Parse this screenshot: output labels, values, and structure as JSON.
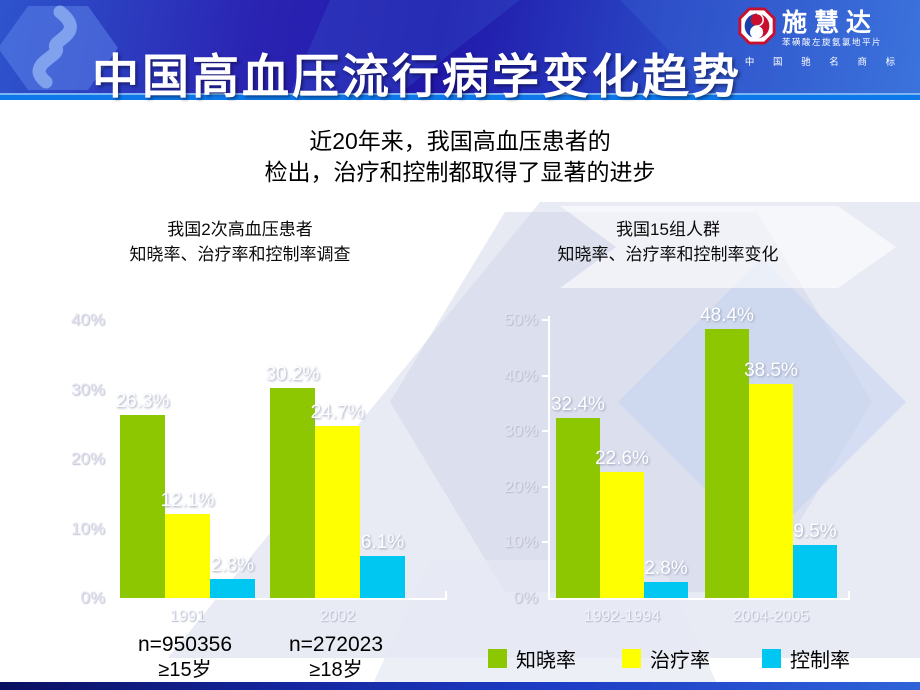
{
  "slide": {
    "title": "中国高血压流行病学变化趋势",
    "logo": {
      "brand": "施慧达",
      "subtext": "苯磺酸左旋氨氯地平片",
      "trademark": "中 国 驰 名 商 标"
    },
    "subtitle_line1": "近20年来，我国高血压患者的",
    "subtitle_line2": "检出，治疗和控制都取得了显著的进步"
  },
  "chart_data": [
    {
      "type": "bar",
      "title": "我国2次高血压患者 知晓率、治疗率和控制率调查",
      "title_line1": "我国2次高血压患者",
      "title_line2": "知晓率、治疗率和控制率调查",
      "categories": [
        "1991",
        "2002"
      ],
      "series": [
        {
          "name": "知晓率",
          "color": "#8dc702",
          "values": [
            26.3,
            30.2
          ]
        },
        {
          "name": "治疗率",
          "color": "#feff00",
          "values": [
            12.1,
            24.7
          ]
        },
        {
          "name": "控制率",
          "color": "#00c6f2",
          "values": [
            2.8,
            6.1
          ]
        }
      ],
      "value_suffix": "%",
      "ylim": [
        0,
        40
      ],
      "yticks": [
        "0%",
        "10%",
        "20%",
        "30%",
        "40%"
      ],
      "grid": false,
      "legend_position": "bottom",
      "footnotes": [
        {
          "n": "n=950356",
          "age": "≥15岁"
        },
        {
          "n": "n=272023",
          "age": "≥18岁"
        }
      ]
    },
    {
      "type": "bar",
      "title": "我国15组人群 知晓率、治疗率和控制率变化",
      "title_line1": "我国15组人群",
      "title_line2": "知晓率、治疗率和控制率变化",
      "categories": [
        "1992-1994",
        "2004-2005"
      ],
      "series": [
        {
          "name": "知晓率",
          "color": "#8dc702",
          "values": [
            32.4,
            48.4
          ]
        },
        {
          "name": "治疗率",
          "color": "#feff00",
          "values": [
            22.6,
            38.5
          ]
        },
        {
          "name": "控制率",
          "color": "#00c6f2",
          "values": [
            2.8,
            9.5
          ]
        }
      ],
      "value_suffix": "%",
      "ylim": [
        0,
        50
      ],
      "yticks": [
        "0%",
        "10%",
        "20%",
        "30%",
        "40%",
        "50%"
      ],
      "grid": false,
      "legend_position": "bottom"
    }
  ],
  "legend": [
    {
      "label": "知晓率",
      "color": "#8dc702"
    },
    {
      "label": "治疗率",
      "color": "#feff00"
    },
    {
      "label": "控制率",
      "color": "#00c6f2"
    }
  ],
  "colors": {
    "header_blue": "#2118aa",
    "accent_strip": "#0d78ea",
    "bar_green": "#8dc702",
    "bar_yellow": "#feff00",
    "bar_cyan": "#00c6f2",
    "logo_red": "#c8102e",
    "watermark_lavender": "#dcdeee"
  }
}
